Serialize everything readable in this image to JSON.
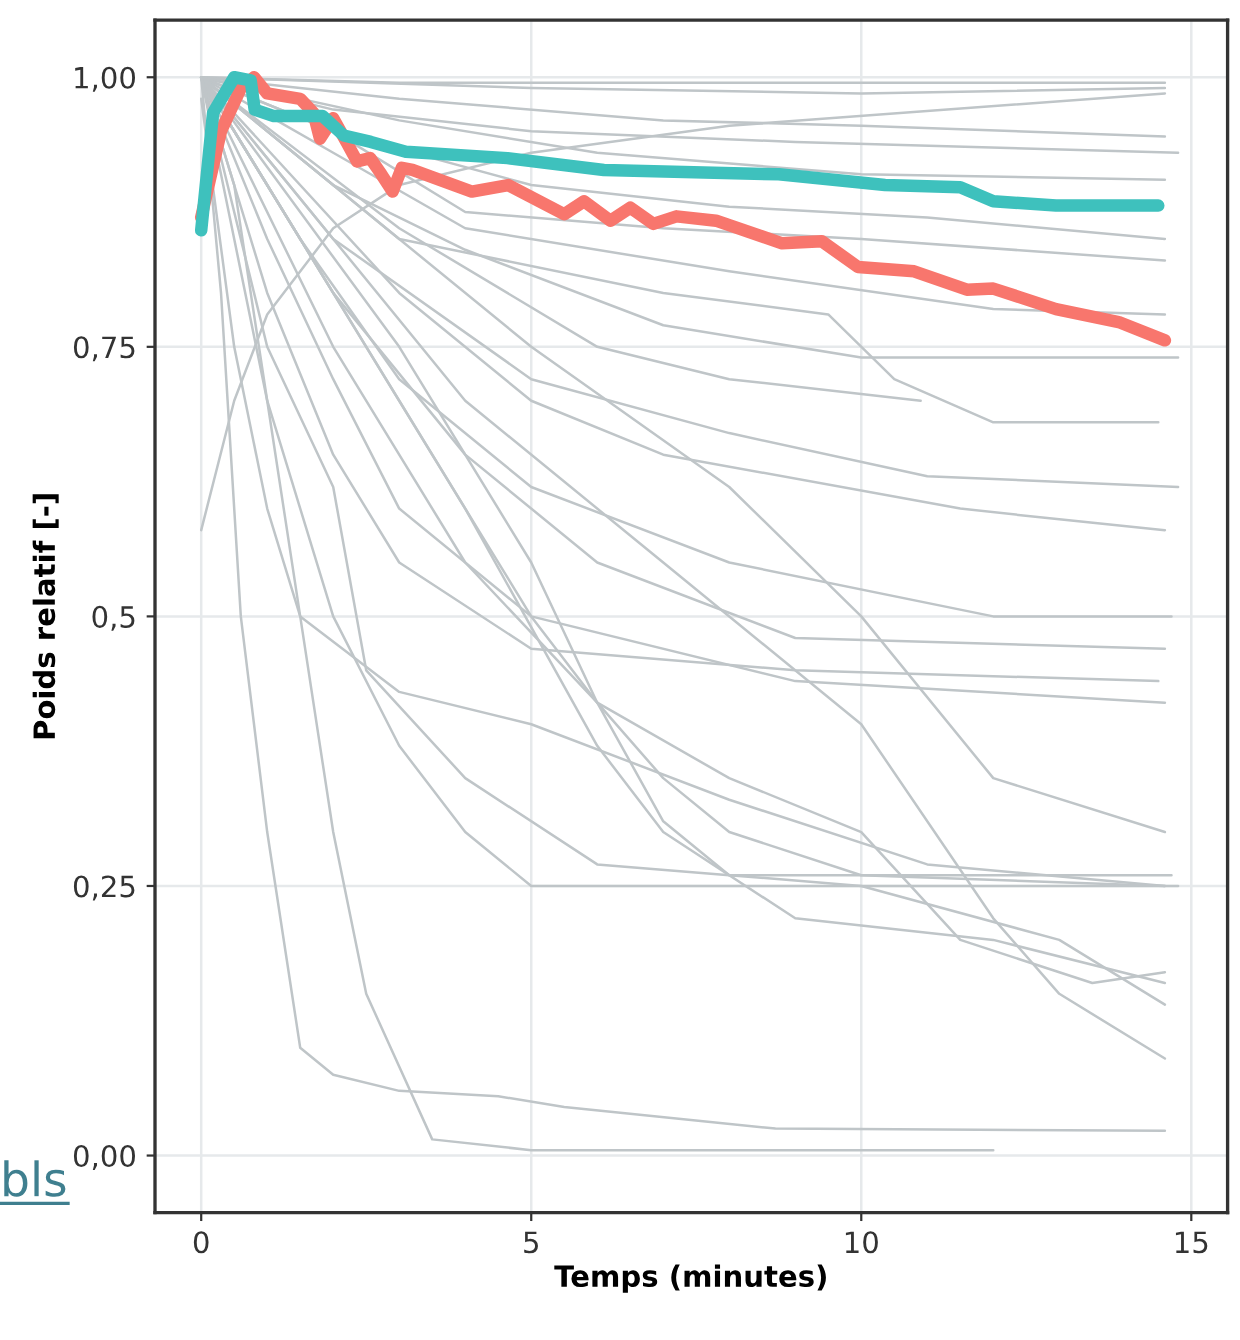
{
  "chart_data": {
    "type": "line",
    "xlabel": "Temps (minutes)",
    "ylabel": "Poids relatif [-]",
    "xlim": [
      -0.7,
      15.55
    ],
    "ylim": [
      -0.053,
      1.053
    ],
    "xticks": [
      0,
      5,
      10,
      15
    ],
    "yticks": [
      {
        "value": 0,
        "label": "0,00"
      },
      {
        "value": 0.25,
        "label": "0,25"
      },
      {
        "value": 0.5,
        "label": "0,5"
      },
      {
        "value": 0.75,
        "label": "0,75"
      },
      {
        "value": 1,
        "label": "1,00"
      }
    ],
    "grid": true,
    "marker": "none",
    "line_style": "solid",
    "annotations": [
      "bls"
    ],
    "series": [
      {
        "color": "#bfc5c8",
        "x": [
          0,
          3,
          14.6
        ],
        "values": [
          1,
          0.995,
          0.995
        ]
      },
      {
        "color": "#bfc5c8",
        "x": [
          0,
          5,
          10,
          14.6
        ],
        "values": [
          1,
          0.99,
          0.985,
          0.99
        ]
      },
      {
        "color": "#bfc5c8",
        "x": [
          0,
          0.5,
          1,
          2,
          3,
          5,
          8,
          14.6
        ],
        "values": [
          0.58,
          0.7,
          0.78,
          0.86,
          0.9,
          0.93,
          0.955,
          0.985
        ]
      },
      {
        "color": "#bfc5c8",
        "x": [
          0,
          3,
          7,
          10,
          14.6
        ],
        "values": [
          1,
          0.98,
          0.96,
          0.955,
          0.945
        ]
      },
      {
        "color": "#bfc5c8",
        "x": [
          0,
          2,
          5,
          9,
          14.8
        ],
        "values": [
          1,
          0.97,
          0.95,
          0.94,
          0.93
        ]
      },
      {
        "color": "#bfc5c8",
        "x": [
          0,
          3,
          6,
          10,
          14.6
        ],
        "values": [
          1,
          0.96,
          0.93,
          0.91,
          0.905
        ]
      },
      {
        "color": "#bfc5c8",
        "x": [
          0,
          2,
          5,
          8,
          11,
          14.6
        ],
        "values": [
          1,
          0.95,
          0.9,
          0.88,
          0.87,
          0.85
        ]
      },
      {
        "color": "#bfc5c8",
        "x": [
          0,
          2,
          4,
          7,
          10,
          14.6
        ],
        "values": [
          1,
          0.95,
          0.875,
          0.86,
          0.85,
          0.83
        ]
      },
      {
        "color": "#bfc5c8",
        "x": [
          0,
          2,
          4,
          8,
          12,
          14.6
        ],
        "values": [
          1,
          0.93,
          0.86,
          0.82,
          0.785,
          0.78
        ]
      },
      {
        "color": "#bfc5c8",
        "x": [
          0,
          2,
          4,
          7,
          10,
          14.8
        ],
        "values": [
          1,
          0.9,
          0.84,
          0.77,
          0.74,
          0.74
        ]
      },
      {
        "color": "#bfc5c8",
        "x": [
          0,
          3,
          6,
          8,
          10.9
        ],
        "values": [
          1,
          0.86,
          0.75,
          0.72,
          0.7
        ]
      },
      {
        "color": "#bfc5c8",
        "x": [
          0,
          3,
          7,
          9.5,
          10.5,
          12,
          14.5
        ],
        "values": [
          1,
          0.85,
          0.8,
          0.78,
          0.72,
          0.68,
          0.68
        ]
      },
      {
        "color": "#bfc5c8",
        "x": [
          0,
          2,
          5,
          8,
          11,
          14.8
        ],
        "values": [
          1,
          0.85,
          0.72,
          0.67,
          0.63,
          0.62
        ]
      },
      {
        "color": "#bfc5c8",
        "x": [
          0,
          3,
          5,
          7,
          11.5,
          13,
          14.6
        ],
        "values": [
          1,
          0.8,
          0.7,
          0.65,
          0.6,
          0.59,
          0.58
        ]
      },
      {
        "color": "#bfc5c8",
        "x": [
          0,
          1.5,
          3,
          5,
          8,
          12,
          14.7
        ],
        "values": [
          1,
          0.85,
          0.72,
          0.62,
          0.55,
          0.5,
          0.5
        ]
      },
      {
        "color": "#bfc5c8",
        "x": [
          0,
          2,
          4,
          6,
          9,
          14.6
        ],
        "values": [
          1,
          0.8,
          0.65,
          0.55,
          0.48,
          0.47
        ]
      },
      {
        "color": "#bfc5c8",
        "x": [
          0,
          1,
          2,
          3,
          5,
          9,
          14.6
        ],
        "values": [
          1,
          0.85,
          0.72,
          0.6,
          0.5,
          0.44,
          0.42
        ]
      },
      {
        "color": "#bfc5c8",
        "x": [
          0,
          1,
          2,
          3,
          5,
          9,
          14.5
        ],
        "values": [
          1,
          0.8,
          0.65,
          0.55,
          0.47,
          0.45,
          0.44
        ]
      },
      {
        "color": "#bfc5c8",
        "x": [
          0,
          0.5,
          1,
          1.5,
          3,
          5,
          8,
          11,
          14.6
        ],
        "values": [
          0.98,
          0.75,
          0.6,
          0.5,
          0.43,
          0.4,
          0.33,
          0.27,
          0.25
        ]
      },
      {
        "color": "#bfc5c8",
        "x": [
          0,
          1,
          2,
          3,
          4,
          5,
          7,
          10,
          14.8
        ],
        "values": [
          1,
          0.7,
          0.5,
          0.38,
          0.3,
          0.25,
          0.25,
          0.25,
          0.25
        ]
      },
      {
        "color": "#bfc5c8",
        "x": [
          0,
          2,
          4,
          6,
          8,
          10,
          11.5,
          13.5,
          14.6
        ],
        "values": [
          1,
          0.75,
          0.55,
          0.42,
          0.35,
          0.3,
          0.2,
          0.16,
          0.17
        ]
      },
      {
        "color": "#bfc5c8",
        "x": [
          0,
          3,
          5,
          6,
          7,
          8,
          10,
          14.6
        ],
        "values": [
          1,
          0.7,
          0.5,
          0.42,
          0.35,
          0.3,
          0.26,
          0.25
        ]
      },
      {
        "color": "#bfc5c8",
        "x": [
          0,
          3,
          5,
          6,
          7,
          8,
          10,
          13,
          14.6
        ],
        "values": [
          1,
          0.75,
          0.55,
          0.42,
          0.31,
          0.26,
          0.25,
          0.2,
          0.14
        ]
      },
      {
        "color": "#bfc5c8",
        "x": [
          0,
          4,
          6,
          7,
          9,
          12,
          14.6
        ],
        "values": [
          1,
          0.6,
          0.38,
          0.3,
          0.22,
          0.2,
          0.16
        ]
      },
      {
        "color": "#bfc5c8",
        "x": [
          0,
          4,
          7,
          10,
          12,
          13,
          14.6
        ],
        "values": [
          1,
          0.7,
          0.55,
          0.4,
          0.22,
          0.15,
          0.09
        ]
      },
      {
        "color": "#bfc5c8",
        "x": [
          0,
          5,
          8,
          10,
          12,
          14.6
        ],
        "values": [
          1,
          0.75,
          0.62,
          0.5,
          0.35,
          0.3
        ]
      },
      {
        "color": "#bfc5c8",
        "x": [
          0,
          0.3,
          0.6,
          1,
          1.5,
          2,
          3,
          4.5,
          5.5,
          8.7,
          14.6
        ],
        "values": [
          1,
          0.8,
          0.5,
          0.3,
          0.1,
          0.075,
          0.06,
          0.055,
          0.045,
          0.025,
          0.023
        ]
      },
      {
        "color": "#bfc5c8",
        "x": [
          0,
          0.5,
          1,
          1.5,
          2,
          2.5,
          3.5,
          5,
          12
        ],
        "values": [
          1,
          0.9,
          0.7,
          0.5,
          0.3,
          0.15,
          0.015,
          0.005,
          0.005
        ]
      },
      {
        "color": "#bfc5c8",
        "x": [
          0,
          1,
          2,
          2.5,
          4,
          6,
          8,
          14.7
        ],
        "values": [
          1,
          0.75,
          0.62,
          0.45,
          0.35,
          0.27,
          0.26,
          0.26
        ]
      },
      {
        "color": "#f8766d",
        "x": [
          0,
          0.3,
          0.6,
          0.8,
          1.0,
          1.5,
          1.7,
          1.8,
          2.0,
          2.2,
          2.36,
          2.56,
          2.73,
          2.9,
          3.04,
          3.2,
          4.1,
          4.65,
          5.5,
          5.8,
          6.2,
          6.5,
          6.85,
          7.2,
          7.8,
          8.8,
          9.4,
          9.95,
          10.8,
          11.6,
          12.0,
          12.95,
          13.9,
          14.6
        ],
        "values": [
          0.87,
          0.95,
          0.99,
          1.0,
          0.985,
          0.98,
          0.967,
          0.943,
          0.962,
          0.94,
          0.922,
          0.925,
          0.91,
          0.894,
          0.916,
          0.914,
          0.894,
          0.9,
          0.873,
          0.885,
          0.867,
          0.879,
          0.864,
          0.871,
          0.867,
          0.846,
          0.848,
          0.824,
          0.82,
          0.803,
          0.804,
          0.785,
          0.773,
          0.756
        ]
      },
      {
        "color": "#3ec1bd",
        "x": [
          0,
          0.18,
          0.5,
          0.75,
          0.81,
          1.1,
          1.84,
          2.16,
          2.57,
          3.1,
          4.64,
          6.1,
          8.75,
          10.36,
          11.5,
          12.0,
          12.95,
          14.5
        ],
        "values": [
          0.858,
          0.967,
          1.0,
          0.997,
          0.97,
          0.964,
          0.964,
          0.946,
          0.94,
          0.931,
          0.925,
          0.914,
          0.91,
          0.9,
          0.898,
          0.885,
          0.881,
          0.881
        ]
      }
    ]
  }
}
